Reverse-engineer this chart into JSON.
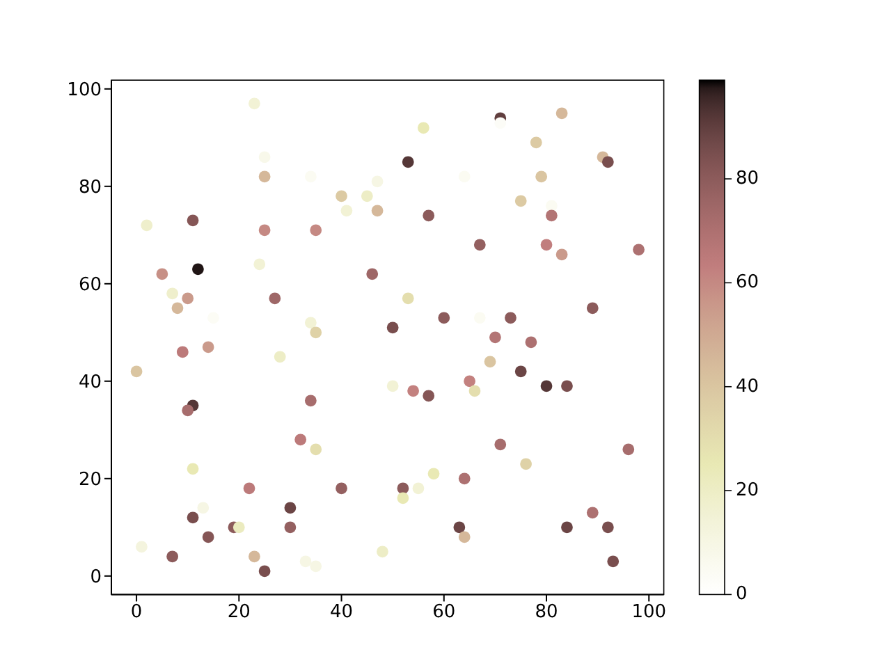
{
  "chart_data": {
    "type": "scatter",
    "marker": "circle",
    "x": [
      23,
      25,
      25,
      34,
      47,
      40,
      45,
      41,
      47,
      2,
      11,
      25,
      35,
      12,
      5,
      24,
      7,
      10,
      8,
      15,
      27,
      34,
      35,
      46,
      50,
      71,
      71,
      83,
      56,
      78,
      53,
      91,
      92,
      64,
      79,
      75,
      81,
      81,
      57,
      67,
      80,
      83,
      98,
      53,
      60,
      67,
      73,
      89,
      70,
      77,
      69,
      75,
      80,
      84,
      50,
      54,
      57,
      65,
      66,
      71,
      96,
      76,
      58,
      64,
      52,
      55,
      52,
      89,
      63,
      64,
      84,
      92,
      93,
      48,
      9,
      14,
      28,
      0,
      11,
      10,
      34,
      32,
      35,
      11,
      22,
      40,
      13,
      30,
      11,
      19,
      20,
      30,
      14,
      1,
      7,
      23,
      25,
      33,
      35
    ],
    "values": [
      97,
      86,
      82,
      82,
      81,
      78,
      78,
      75,
      75,
      72,
      73,
      71,
      71,
      63,
      62,
      64,
      58,
      57,
      55,
      53,
      57,
      52,
      50,
      62,
      51,
      94,
      93,
      95,
      92,
      89,
      85,
      86,
      85,
      82,
      82,
      77,
      76,
      74,
      74,
      68,
      68,
      66,
      67,
      57,
      53,
      53,
      53,
      55,
      49,
      48,
      44,
      42,
      39,
      39,
      39,
      38,
      37,
      40,
      38,
      27,
      26,
      23,
      21,
      20,
      18,
      18,
      16,
      13,
      10,
      8,
      10,
      10,
      3,
      5,
      46,
      47,
      45,
      42,
      35,
      34,
      36,
      28,
      26,
      22,
      18,
      18,
      14,
      14,
      12,
      10,
      10,
      10,
      8,
      6,
      4,
      4,
      1,
      3,
      2
    ],
    "cvalues": [
      15,
      8,
      45,
      5,
      10,
      38,
      20,
      15,
      45,
      18,
      82,
      60,
      60,
      98,
      58,
      15,
      18,
      55,
      45,
      4,
      75,
      15,
      35,
      75,
      85,
      90,
      3,
      45,
      25,
      38,
      92,
      45,
      85,
      5,
      40,
      38,
      5,
      68,
      80,
      78,
      63,
      55,
      70,
      30,
      80,
      5,
      80,
      80,
      68,
      70,
      40,
      88,
      92,
      85,
      15,
      62,
      82,
      62,
      30,
      72,
      72,
      35,
      25,
      70,
      80,
      15,
      25,
      70,
      88,
      45,
      88,
      85,
      85,
      20,
      65,
      55,
      20,
      40,
      92,
      72,
      72,
      65,
      30,
      25,
      65,
      78,
      10,
      88,
      85,
      80,
      22,
      78,
      82,
      12,
      80,
      45,
      85,
      10,
      10
    ],
    "clim": [
      0,
      99
    ],
    "cticks": [
      0,
      20,
      40,
      60,
      80
    ],
    "xlim": [
      -4.9,
      102.9
    ],
    "ylim": [
      -3.8,
      101.8
    ],
    "xticks": [
      0,
      20,
      40,
      60,
      80,
      100
    ],
    "yticks": [
      0,
      20,
      40,
      60,
      80,
      100
    ]
  }
}
